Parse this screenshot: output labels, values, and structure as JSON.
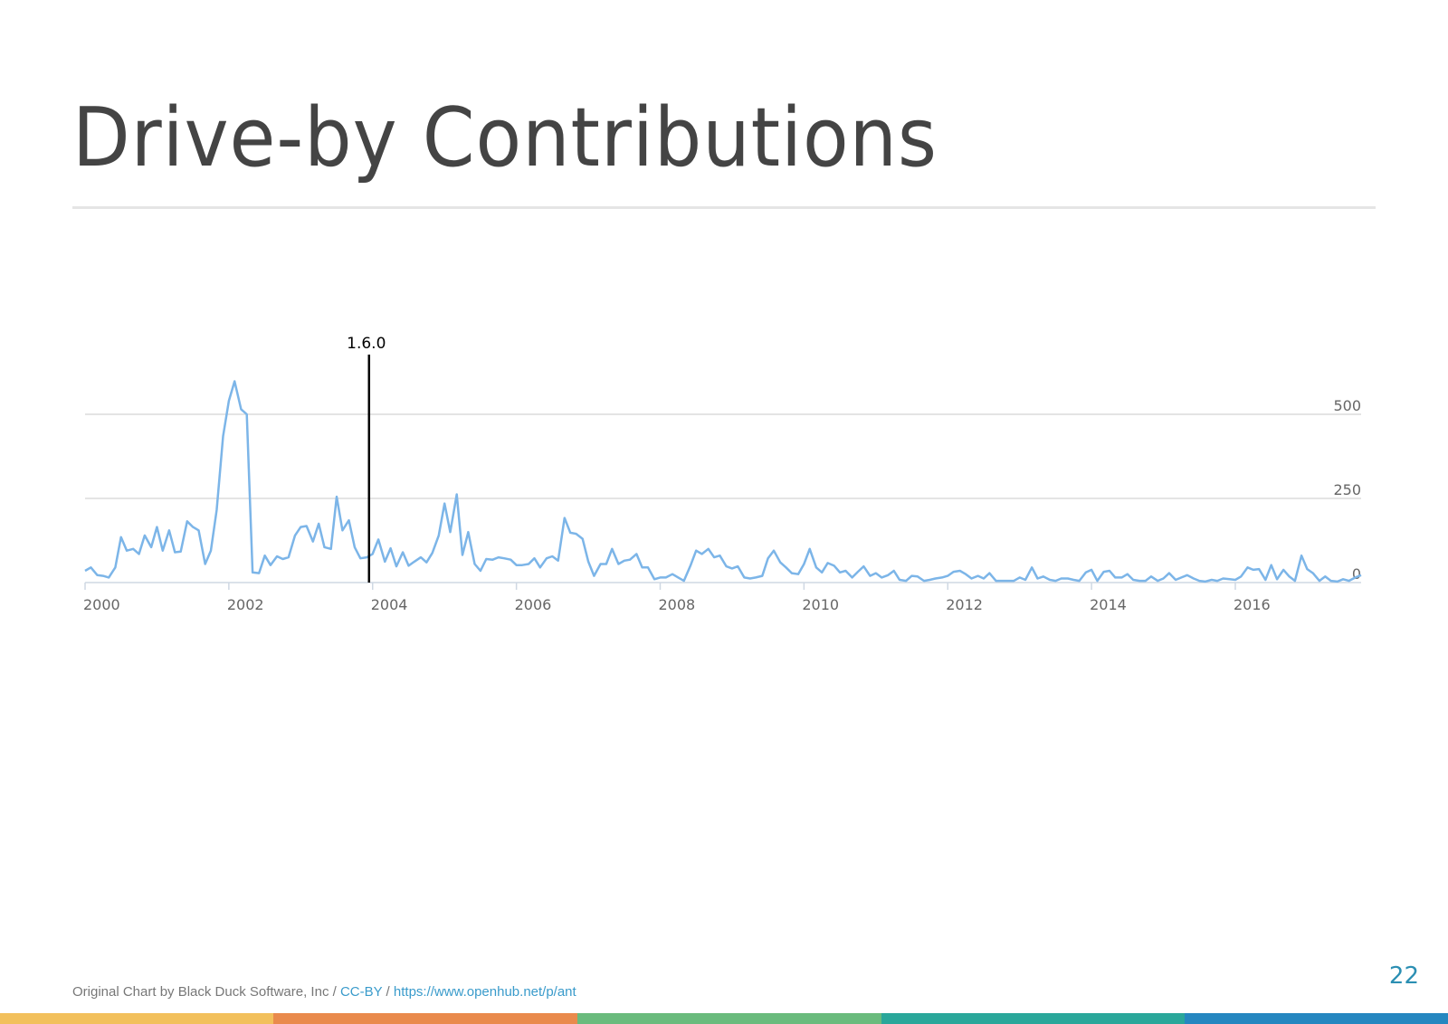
{
  "slide": {
    "title": "Drive-by Contributions",
    "page_number": "22"
  },
  "footer": {
    "credit": "Original Chart by Black Duck Software, Inc",
    "separator": " / ",
    "license": "CC-BY",
    "url": "https://www.openhub.net/p/ant"
  },
  "colors": {
    "line": "#7cb5e8",
    "title": "#444444",
    "accent": "#2b8fb3",
    "band": [
      "#f2c05c",
      "#e98a4c",
      "#6abb7d",
      "#2aa79a",
      "#2587c0"
    ]
  },
  "chart_data": {
    "type": "line",
    "xlabel": "",
    "ylabel": "",
    "xlim": [
      2000.0,
      2017.75
    ],
    "ylim": [
      0,
      600
    ],
    "yticks": [
      0,
      250,
      500
    ],
    "ytick_labels": [
      "0",
      "250",
      "500"
    ],
    "xticks": [
      2000,
      2002,
      2004,
      2006,
      2008,
      2010,
      2012,
      2014,
      2016
    ],
    "xtick_labels": [
      "2000",
      "2002",
      "2004",
      "2006",
      "2008",
      "2010",
      "2012",
      "2014",
      "2016"
    ],
    "grid": true,
    "y_axis_side": "right",
    "annotations": [
      {
        "label": "1.6.0",
        "x": 2003.95
      }
    ],
    "series": [
      {
        "values": [
          [
            2000.0,
            35
          ],
          [
            2000.08,
            45
          ],
          [
            2000.17,
            22
          ],
          [
            2000.25,
            20
          ],
          [
            2000.33,
            15
          ],
          [
            2000.42,
            45
          ],
          [
            2000.5,
            135
          ],
          [
            2000.58,
            95
          ],
          [
            2000.67,
            100
          ],
          [
            2000.75,
            85
          ],
          [
            2000.83,
            140
          ],
          [
            2000.92,
            105
          ],
          [
            2001.0,
            165
          ],
          [
            2001.08,
            95
          ],
          [
            2001.17,
            155
          ],
          [
            2001.25,
            90
          ],
          [
            2001.33,
            92
          ],
          [
            2001.42,
            182
          ],
          [
            2001.5,
            165
          ],
          [
            2001.58,
            155
          ],
          [
            2001.67,
            55
          ],
          [
            2001.75,
            95
          ],
          [
            2001.83,
            215
          ],
          [
            2001.92,
            435
          ],
          [
            2002.0,
            540
          ],
          [
            2002.08,
            598
          ],
          [
            2002.17,
            515
          ],
          [
            2002.25,
            500
          ],
          [
            2002.33,
            30
          ],
          [
            2002.42,
            28
          ],
          [
            2002.5,
            80
          ],
          [
            2002.58,
            52
          ],
          [
            2002.67,
            78
          ],
          [
            2002.75,
            70
          ],
          [
            2002.83,
            75
          ],
          [
            2002.92,
            140
          ],
          [
            2003.0,
            165
          ],
          [
            2003.08,
            168
          ],
          [
            2003.17,
            122
          ],
          [
            2003.25,
            175
          ],
          [
            2003.33,
            105
          ],
          [
            2003.42,
            100
          ],
          [
            2003.5,
            255
          ],
          [
            2003.58,
            155
          ],
          [
            2003.67,
            185
          ],
          [
            2003.75,
            105
          ],
          [
            2003.83,
            72
          ],
          [
            2003.92,
            75
          ],
          [
            2004.0,
            85
          ],
          [
            2004.08,
            128
          ],
          [
            2004.17,
            62
          ],
          [
            2004.25,
            102
          ],
          [
            2004.33,
            48
          ],
          [
            2004.42,
            90
          ],
          [
            2004.5,
            50
          ],
          [
            2004.58,
            62
          ],
          [
            2004.67,
            75
          ],
          [
            2004.75,
            60
          ],
          [
            2004.83,
            88
          ],
          [
            2004.92,
            140
          ],
          [
            2005.0,
            235
          ],
          [
            2005.08,
            150
          ],
          [
            2005.17,
            262
          ],
          [
            2005.25,
            82
          ],
          [
            2005.33,
            150
          ],
          [
            2005.42,
            55
          ],
          [
            2005.5,
            35
          ],
          [
            2005.58,
            70
          ],
          [
            2005.67,
            68
          ],
          [
            2005.75,
            75
          ],
          [
            2005.83,
            72
          ],
          [
            2005.92,
            68
          ],
          [
            2006.0,
            52
          ],
          [
            2006.08,
            52
          ],
          [
            2006.17,
            55
          ],
          [
            2006.25,
            72
          ],
          [
            2006.33,
            45
          ],
          [
            2006.42,
            72
          ],
          [
            2006.5,
            78
          ],
          [
            2006.58,
            65
          ],
          [
            2006.67,
            192
          ],
          [
            2006.75,
            148
          ],
          [
            2006.83,
            145
          ],
          [
            2006.92,
            130
          ],
          [
            2007.0,
            62
          ],
          [
            2007.08,
            20
          ],
          [
            2007.17,
            55
          ],
          [
            2007.25,
            55
          ],
          [
            2007.33,
            100
          ],
          [
            2007.42,
            55
          ],
          [
            2007.5,
            65
          ],
          [
            2007.58,
            68
          ],
          [
            2007.67,
            85
          ],
          [
            2007.75,
            45
          ],
          [
            2007.83,
            45
          ],
          [
            2007.92,
            10
          ],
          [
            2008.0,
            15
          ],
          [
            2008.08,
            15
          ],
          [
            2008.17,
            25
          ],
          [
            2008.25,
            15
          ],
          [
            2008.33,
            5
          ],
          [
            2008.42,
            50
          ],
          [
            2008.5,
            95
          ],
          [
            2008.58,
            85
          ],
          [
            2008.67,
            100
          ],
          [
            2008.75,
            75
          ],
          [
            2008.83,
            80
          ],
          [
            2008.92,
            48
          ],
          [
            2009.0,
            42
          ],
          [
            2009.08,
            48
          ],
          [
            2009.17,
            15
          ],
          [
            2009.25,
            12
          ],
          [
            2009.33,
            15
          ],
          [
            2009.42,
            20
          ],
          [
            2009.5,
            72
          ],
          [
            2009.58,
            95
          ],
          [
            2009.67,
            60
          ],
          [
            2009.75,
            45
          ],
          [
            2009.83,
            28
          ],
          [
            2009.92,
            25
          ],
          [
            2010.0,
            55
          ],
          [
            2010.08,
            100
          ],
          [
            2010.17,
            45
          ],
          [
            2010.25,
            30
          ],
          [
            2010.33,
            58
          ],
          [
            2010.42,
            50
          ],
          [
            2010.5,
            30
          ],
          [
            2010.58,
            35
          ],
          [
            2010.67,
            15
          ],
          [
            2010.75,
            32
          ],
          [
            2010.83,
            48
          ],
          [
            2010.92,
            20
          ],
          [
            2011.0,
            28
          ],
          [
            2011.08,
            15
          ],
          [
            2011.17,
            22
          ],
          [
            2011.25,
            35
          ],
          [
            2011.33,
            8
          ],
          [
            2011.42,
            5
          ],
          [
            2011.5,
            20
          ],
          [
            2011.58,
            18
          ],
          [
            2011.67,
            5
          ],
          [
            2011.75,
            8
          ],
          [
            2011.83,
            12
          ],
          [
            2011.92,
            15
          ],
          [
            2012.0,
            20
          ],
          [
            2012.08,
            32
          ],
          [
            2012.17,
            35
          ],
          [
            2012.25,
            25
          ],
          [
            2012.33,
            12
          ],
          [
            2012.42,
            20
          ],
          [
            2012.5,
            12
          ],
          [
            2012.58,
            28
          ],
          [
            2012.67,
            5
          ],
          [
            2012.75,
            5
          ],
          [
            2012.83,
            5
          ],
          [
            2012.92,
            5
          ],
          [
            2013.0,
            15
          ],
          [
            2013.08,
            8
          ],
          [
            2013.17,
            45
          ],
          [
            2013.25,
            12
          ],
          [
            2013.33,
            18
          ],
          [
            2013.42,
            8
          ],
          [
            2013.5,
            5
          ],
          [
            2013.58,
            12
          ],
          [
            2013.67,
            12
          ],
          [
            2013.75,
            8
          ],
          [
            2013.83,
            5
          ],
          [
            2013.92,
            30
          ],
          [
            2014.0,
            38
          ],
          [
            2014.08,
            5
          ],
          [
            2014.17,
            32
          ],
          [
            2014.25,
            35
          ],
          [
            2014.33,
            15
          ],
          [
            2014.42,
            15
          ],
          [
            2014.5,
            25
          ],
          [
            2014.58,
            8
          ],
          [
            2014.67,
            5
          ],
          [
            2014.75,
            5
          ],
          [
            2014.83,
            18
          ],
          [
            2014.92,
            5
          ],
          [
            2015.0,
            12
          ],
          [
            2015.08,
            28
          ],
          [
            2015.17,
            8
          ],
          [
            2015.25,
            15
          ],
          [
            2015.33,
            22
          ],
          [
            2015.42,
            12
          ],
          [
            2015.5,
            5
          ],
          [
            2015.58,
            3
          ],
          [
            2015.67,
            8
          ],
          [
            2015.75,
            5
          ],
          [
            2015.83,
            12
          ],
          [
            2015.92,
            10
          ],
          [
            2016.0,
            8
          ],
          [
            2016.08,
            18
          ],
          [
            2016.17,
            45
          ],
          [
            2016.25,
            38
          ],
          [
            2016.33,
            40
          ],
          [
            2016.42,
            8
          ],
          [
            2016.5,
            52
          ],
          [
            2016.58,
            10
          ],
          [
            2016.67,
            38
          ],
          [
            2016.75,
            18
          ],
          [
            2016.83,
            5
          ],
          [
            2016.92,
            80
          ],
          [
            2017.0,
            40
          ],
          [
            2017.08,
            28
          ],
          [
            2017.17,
            5
          ],
          [
            2017.25,
            18
          ],
          [
            2017.33,
            5
          ],
          [
            2017.42,
            3
          ],
          [
            2017.5,
            10
          ],
          [
            2017.58,
            5
          ],
          [
            2017.67,
            15
          ],
          [
            2017.75,
            22
          ]
        ]
      }
    ]
  }
}
